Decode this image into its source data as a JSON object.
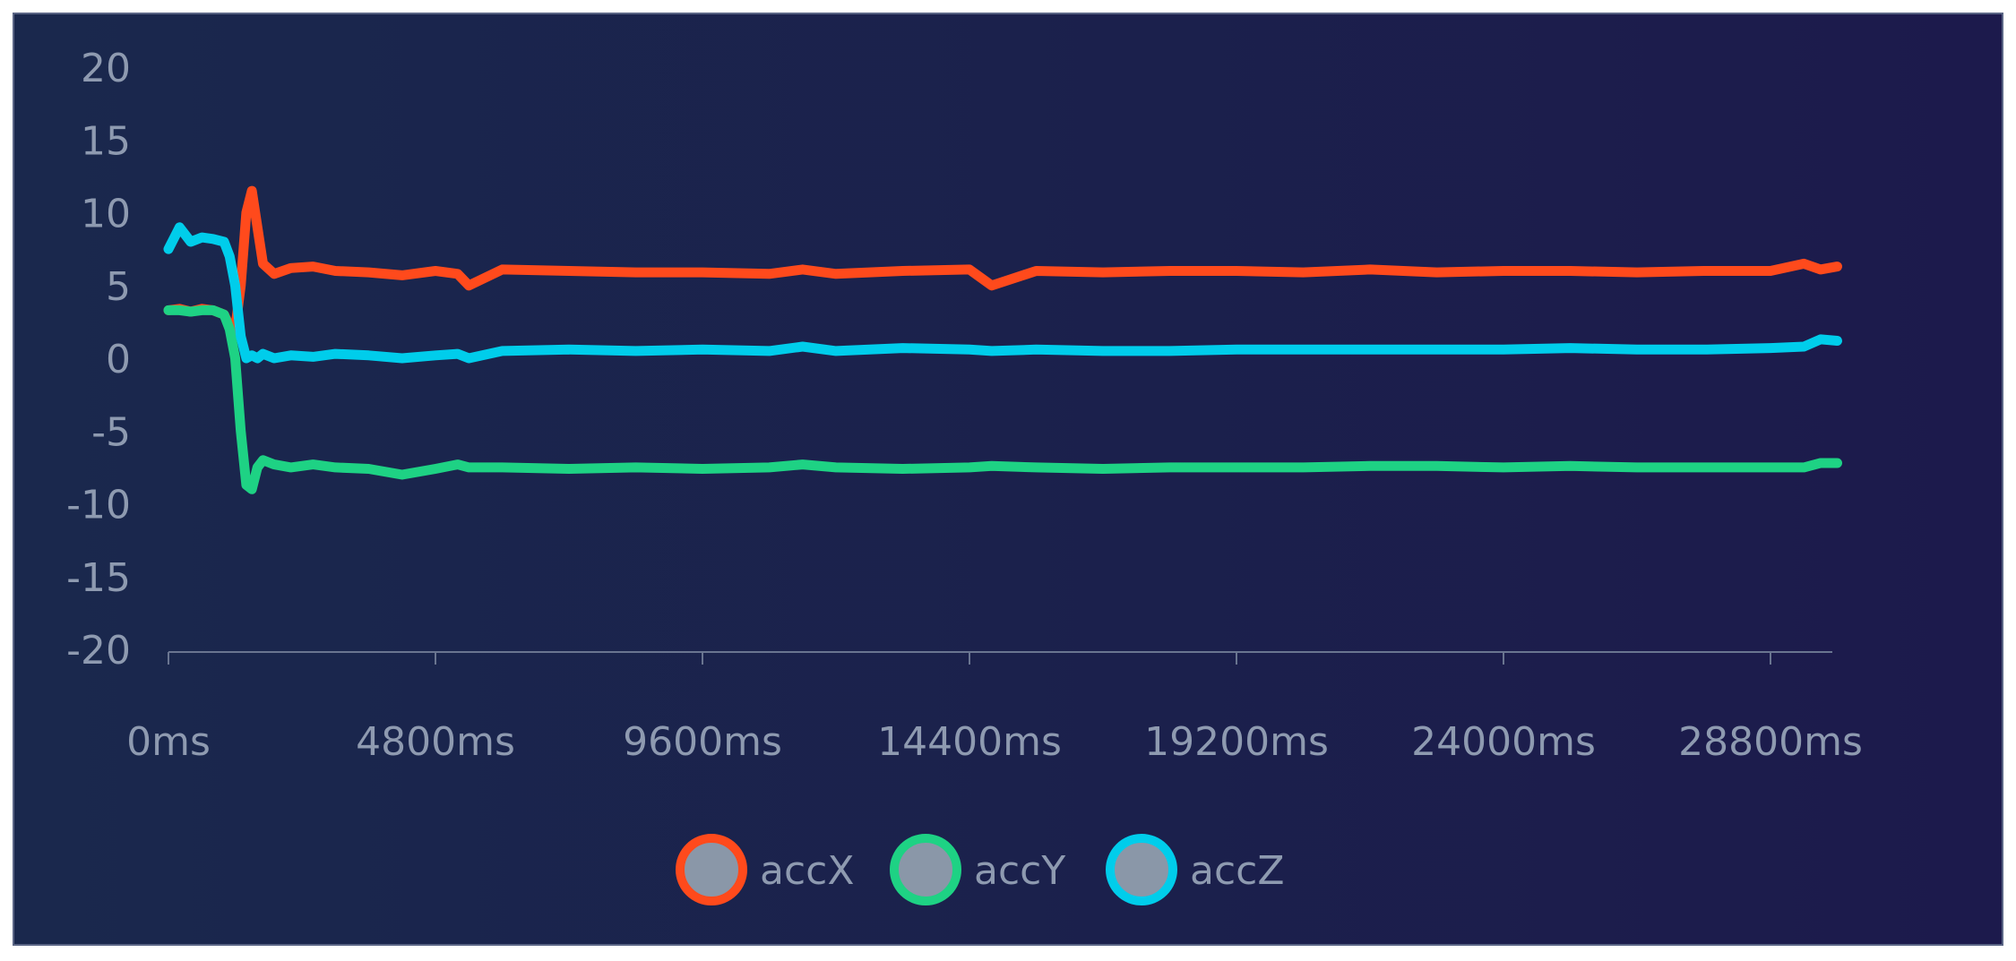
{
  "chart_data": {
    "type": "line",
    "title": "",
    "xlabel": "",
    "ylabel": "",
    "ylim": [
      -20,
      20
    ],
    "xlim": [
      0,
      30000
    ],
    "grid": false,
    "legend_position": "bottom-center",
    "y_ticks": [
      20,
      15,
      10,
      5,
      0,
      -5,
      -10,
      -15,
      -20
    ],
    "y_tick_labels": [
      "20",
      "15",
      "10",
      "5",
      "0",
      "-5",
      "-10",
      "-15",
      "-20"
    ],
    "x_ticks": [
      0,
      4800,
      9600,
      14400,
      19200,
      24000,
      28800
    ],
    "x_tick_labels": [
      "0ms",
      "4800ms",
      "9600ms",
      "14400ms",
      "19200ms",
      "24000ms",
      "28800ms"
    ],
    "x": [
      0,
      200,
      400,
      600,
      800,
      1000,
      1100,
      1200,
      1300,
      1400,
      1500,
      1600,
      1700,
      1900,
      2200,
      2600,
      3000,
      3600,
      4200,
      4800,
      5200,
      5400,
      6000,
      7200,
      8400,
      9600,
      10800,
      11400,
      12000,
      13200,
      14400,
      14800,
      15600,
      16800,
      18000,
      19200,
      20400,
      21600,
      22800,
      24000,
      25200,
      26400,
      27600,
      28800,
      29400,
      29700,
      30000
    ],
    "series": [
      {
        "name": "accX",
        "color": "#ff4a1c",
        "values": [
          3.3,
          3.4,
          3.2,
          3.4,
          3.3,
          3.0,
          2.2,
          2.0,
          5,
          10,
          11.5,
          9,
          6.5,
          5.8,
          6.2,
          6.3,
          6.0,
          5.9,
          5.7,
          6.0,
          5.8,
          5.0,
          6.1,
          6.0,
          5.9,
          5.9,
          5.8,
          6.1,
          5.8,
          6.0,
          6.1,
          5.0,
          6.0,
          5.9,
          6.0,
          6.0,
          5.9,
          6.1,
          5.9,
          6.0,
          6.0,
          5.9,
          6.0,
          6.0,
          6.5,
          6.1,
          6.3
        ]
      },
      {
        "name": "accY",
        "color": "#1ed284",
        "values": [
          3.3,
          3.3,
          3.2,
          3.3,
          3.3,
          3.0,
          2.0,
          0,
          -5,
          -8.7,
          -9,
          -7.5,
          -7.0,
          -7.3,
          -7.5,
          -7.3,
          -7.5,
          -7.6,
          -8.0,
          -7.6,
          -7.3,
          -7.5,
          -7.5,
          -7.6,
          -7.5,
          -7.6,
          -7.5,
          -7.3,
          -7.5,
          -7.6,
          -7.5,
          -7.4,
          -7.5,
          -7.6,
          -7.5,
          -7.5,
          -7.5,
          -7.4,
          -7.4,
          -7.5,
          -7.4,
          -7.5,
          -7.5,
          -7.5,
          -7.5,
          -7.2,
          -7.2
        ]
      },
      {
        "name": "accZ",
        "color": "#00cdeb",
        "values": [
          7.5,
          9,
          8,
          8.3,
          8.2,
          8.0,
          7,
          5,
          1.5,
          0,
          0.2,
          0,
          0.3,
          0,
          0.2,
          0.1,
          0.3,
          0.2,
          0,
          0.2,
          0.3,
          0,
          0.5,
          0.6,
          0.5,
          0.6,
          0.5,
          0.8,
          0.5,
          0.7,
          0.6,
          0.5,
          0.6,
          0.5,
          0.5,
          0.6,
          0.6,
          0.6,
          0.6,
          0.6,
          0.7,
          0.6,
          0.6,
          0.7,
          0.8,
          1.3,
          1.2
        ]
      }
    ]
  }
}
